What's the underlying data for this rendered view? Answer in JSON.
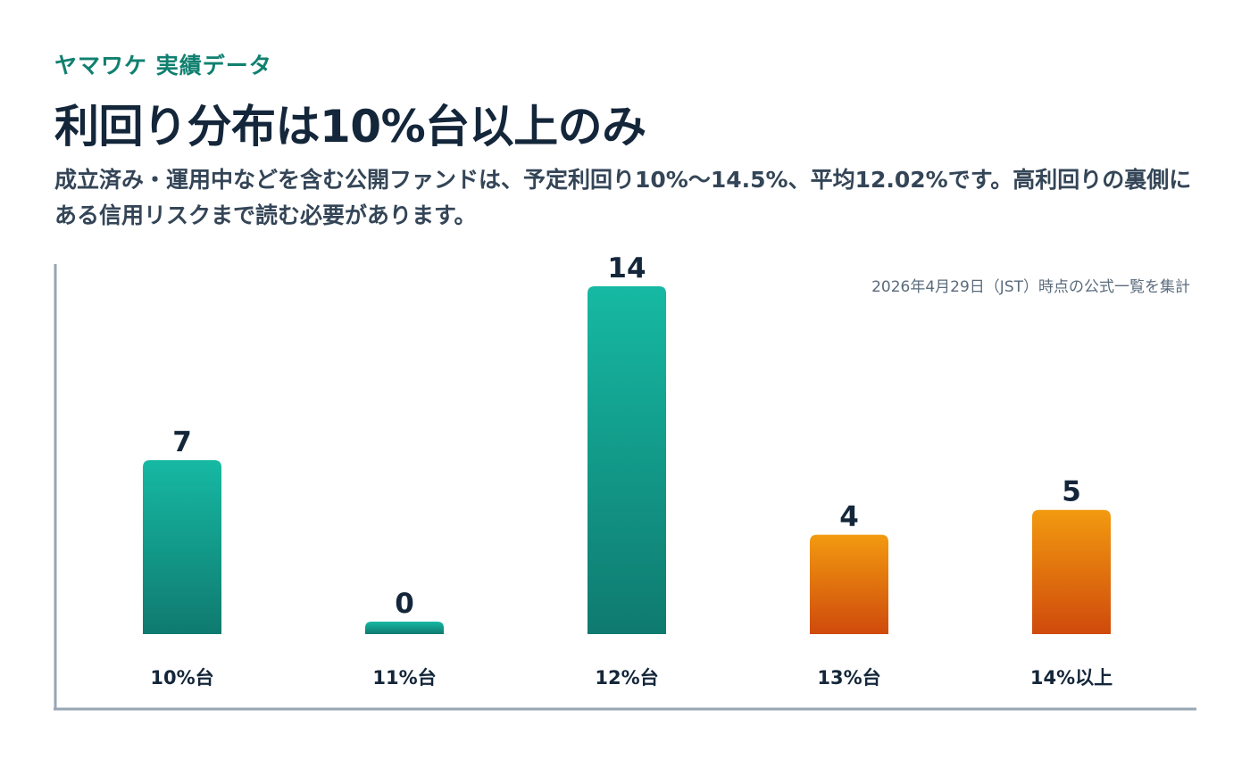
{
  "brand": "ヤマワケ 実績データ",
  "title": "利回り分布は10%台以上のみ",
  "subtitle": "成立済み・運用中などを含む公開ファンドは、予定利回り10%〜14.5%、平均12.02%です。高利回りの裏側にある信用リスクまで読む必要があります。",
  "chart_data": {
    "type": "bar",
    "note": "2026年4月29日（JST）時点の公式一覧を集計",
    "categories": [
      "10%台",
      "11%台",
      "12%台",
      "13%台",
      "14%以上"
    ],
    "values": [
      7,
      0,
      14,
      4,
      5
    ],
    "ylim": [
      0,
      14
    ],
    "grid": false,
    "colors": {
      "teal_top": "#16b9a3",
      "teal_bottom": "#0f7a6f",
      "orange_top": "#f29a10",
      "orange_bottom": "#cf4a0c"
    },
    "bar_color_group": [
      "teal",
      "teal",
      "teal",
      "orange",
      "orange"
    ]
  }
}
